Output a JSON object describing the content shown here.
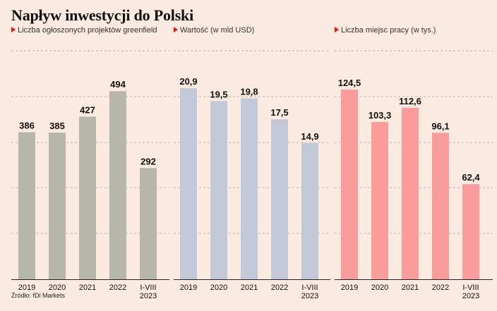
{
  "title": "Napływ inwestycji do Polski",
  "source": "Źródło: fDi Markets",
  "colors": {
    "background": "#fbeadf",
    "grid": "#a9a39c",
    "accent_marker": "#e3171b"
  },
  "chart_data": [
    {
      "type": "bar",
      "subtitle": "Liczba ogłoszonych projektów greenfield",
      "categories": [
        "2019",
        "2020",
        "2021",
        "2022",
        "I-VIII\n2023"
      ],
      "values": [
        386,
        385,
        427,
        494,
        292
      ],
      "value_labels": [
        "386",
        "385",
        "427",
        "494",
        "292"
      ],
      "ylim": [
        0,
        600
      ],
      "color": "#b7b6ab",
      "grid": true
    },
    {
      "type": "bar",
      "subtitle": "Wartość (w mld USD)",
      "categories": [
        "2019",
        "2020",
        "2021",
        "2022",
        "I-VIII\n2023"
      ],
      "values": [
        20.9,
        19.5,
        19.8,
        17.5,
        14.9
      ],
      "value_labels": [
        "20,9",
        "19,5",
        "19,8",
        "17,5",
        "14,9"
      ],
      "ylim": [
        0,
        25
      ],
      "color": "#c3c8d8",
      "grid": true
    },
    {
      "type": "bar",
      "subtitle": "Liczba miejsc pracy (w tys.)",
      "categories": [
        "2019",
        "2020",
        "2021",
        "2022",
        "I-VIII\n2023"
      ],
      "values": [
        124.5,
        103.3,
        112.6,
        96.1,
        62.4
      ],
      "value_labels": [
        "124,5",
        "103,3",
        "112,6",
        "96,1",
        "62,4"
      ],
      "ylim": [
        0,
        150
      ],
      "color": "#fa9c9c",
      "grid": true
    }
  ]
}
